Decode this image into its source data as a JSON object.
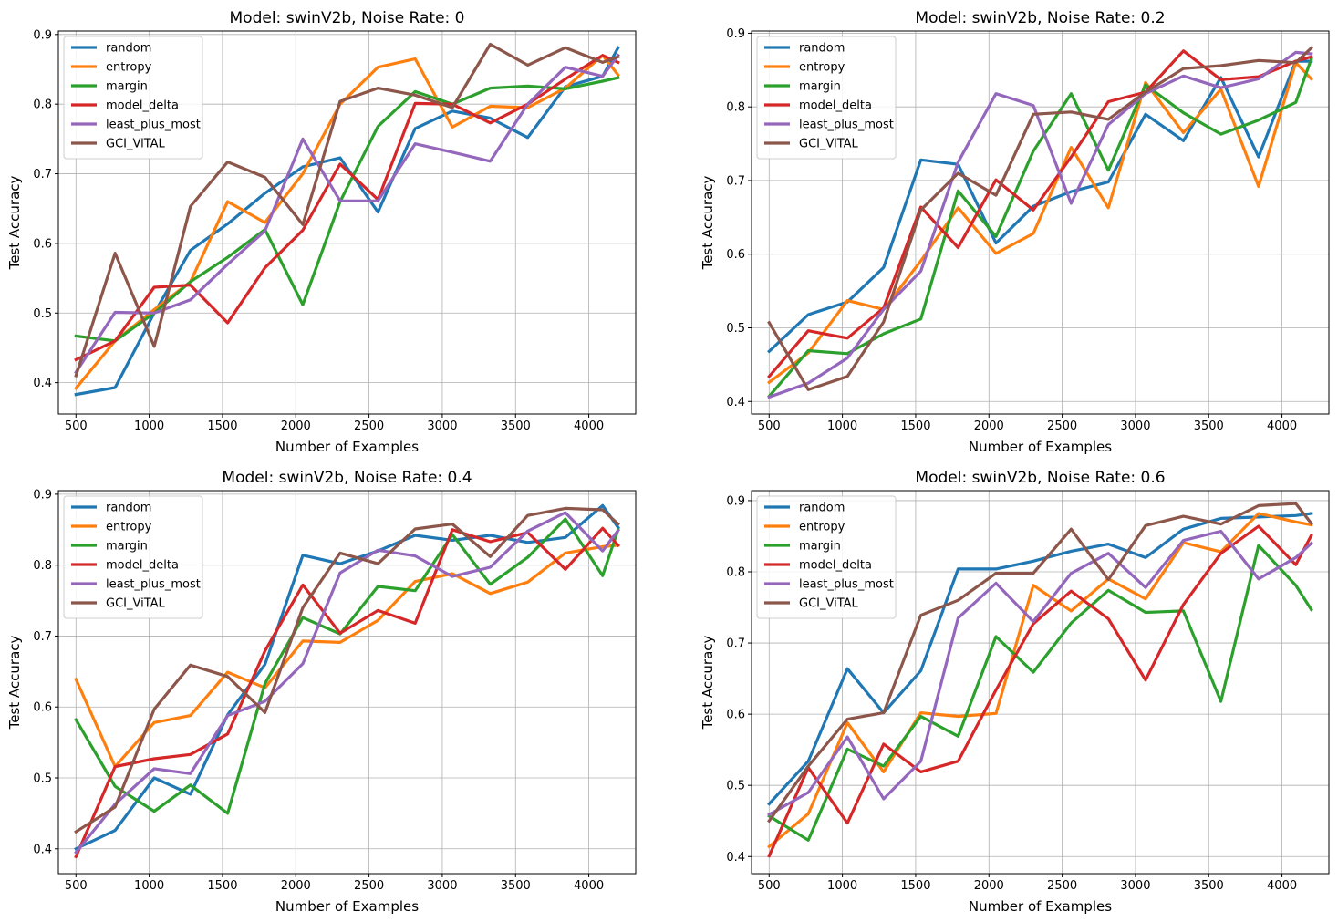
{
  "colors": {
    "random": "#1f77b4",
    "entropy": "#ff7f0e",
    "margin": "#2ca02c",
    "model_delta": "#d62728",
    "least_plus_most": "#9467bd",
    "GCI_ViTAL": "#8c564b",
    "grid": "#b0b0b0",
    "axis": "#000000"
  },
  "chart_data": [
    {
      "type": "line",
      "title": "Model: swinV2b, Noise Rate: 0",
      "xlabel": "Number of Examples",
      "ylabel": "Test Accuracy",
      "xlim": [
        380,
        4320
      ],
      "ylim": [
        0.355,
        0.905
      ],
      "xticks": [
        500,
        1000,
        1500,
        2000,
        2500,
        3000,
        3500,
        4000
      ],
      "yticks": [
        0.4,
        0.5,
        0.6,
        0.7,
        0.8,
        0.9
      ],
      "grid": true,
      "legend_position": "top-left",
      "x": [
        500,
        767,
        1034,
        1281,
        1535,
        1790,
        2048,
        2303,
        2561,
        2815,
        3069,
        3327,
        3583,
        3840,
        4094,
        4200
      ],
      "series": [
        {
          "name": "random",
          "values": [
            0.383,
            0.393,
            0.5,
            0.59,
            0.628,
            0.672,
            0.71,
            0.723,
            0.645,
            0.765,
            0.79,
            0.78,
            0.752,
            0.825,
            0.84,
            0.881
          ]
        },
        {
          "name": "entropy",
          "values": [
            0.392,
            0.46,
            0.505,
            0.545,
            0.66,
            0.63,
            0.7,
            0.8,
            0.853,
            0.865,
            0.767,
            0.797,
            0.795,
            0.823,
            0.87,
            0.842
          ]
        },
        {
          "name": "margin",
          "values": [
            0.467,
            0.46,
            0.5,
            0.545,
            0.58,
            0.62,
            0.512,
            0.66,
            0.768,
            0.818,
            0.8,
            0.823,
            0.826,
            0.822,
            0.833,
            0.838
          ]
        },
        {
          "name": "model_delta",
          "values": [
            0.433,
            0.46,
            0.537,
            0.54,
            0.486,
            0.565,
            0.619,
            0.714,
            0.663,
            0.801,
            0.8,
            0.773,
            0.8,
            0.836,
            0.87,
            0.86
          ]
        },
        {
          "name": "least_plus_most",
          "values": [
            0.415,
            0.501,
            0.5,
            0.519,
            0.57,
            0.618,
            0.75,
            0.661,
            0.661,
            0.743,
            0.731,
            0.718,
            0.8,
            0.853,
            0.84,
            0.87
          ]
        },
        {
          "name": "GCI_ViTAL",
          "values": [
            0.41,
            0.586,
            0.452,
            0.653,
            0.717,
            0.695,
            0.627,
            0.804,
            0.823,
            0.813,
            0.795,
            0.886,
            0.856,
            0.881,
            0.86,
            0.868
          ]
        }
      ]
    },
    {
      "type": "line",
      "title": "Model: swinV2b, Noise Rate: 0.2",
      "xlabel": "Number of Examples",
      "ylabel": "Test Accuracy",
      "xlim": [
        380,
        4320
      ],
      "ylim": [
        0.383,
        0.903
      ],
      "xticks": [
        500,
        1000,
        1500,
        2000,
        2500,
        3000,
        3500,
        4000
      ],
      "yticks": [
        0.4,
        0.5,
        0.6,
        0.7,
        0.8,
        0.9
      ],
      "grid": true,
      "legend_position": "top-left",
      "x": [
        500,
        767,
        1034,
        1281,
        1535,
        1790,
        2048,
        2303,
        2561,
        2815,
        3069,
        3327,
        3583,
        3840,
        4094,
        4200
      ],
      "series": [
        {
          "name": "random",
          "values": [
            0.468,
            0.518,
            0.535,
            0.582,
            0.728,
            0.722,
            0.615,
            0.665,
            0.685,
            0.698,
            0.79,
            0.754,
            0.84,
            0.732,
            0.862,
            0.862
          ]
        },
        {
          "name": "entropy",
          "values": [
            0.426,
            0.466,
            0.537,
            0.525,
            0.591,
            0.663,
            0.601,
            0.628,
            0.745,
            0.663,
            0.833,
            0.765,
            0.824,
            0.692,
            0.86,
            0.838
          ]
        },
        {
          "name": "margin",
          "values": [
            0.407,
            0.469,
            0.465,
            0.492,
            0.512,
            0.686,
            0.624,
            0.74,
            0.818,
            0.714,
            0.83,
            0.792,
            0.763,
            0.782,
            0.806,
            0.865
          ]
        },
        {
          "name": "model_delta",
          "values": [
            0.434,
            0.496,
            0.486,
            0.527,
            0.664,
            0.609,
            0.701,
            0.66,
            0.732,
            0.807,
            0.82,
            0.876,
            0.837,
            0.841,
            0.862,
            0.868
          ]
        },
        {
          "name": "least_plus_most",
          "values": [
            0.406,
            0.425,
            0.459,
            0.525,
            0.577,
            0.725,
            0.818,
            0.802,
            0.669,
            0.776,
            0.818,
            0.842,
            0.826,
            0.838,
            0.874,
            0.872
          ]
        },
        {
          "name": "GCI_ViTAL",
          "values": [
            0.507,
            0.416,
            0.434,
            0.508,
            0.66,
            0.71,
            0.68,
            0.79,
            0.793,
            0.783,
            0.82,
            0.852,
            0.856,
            0.863,
            0.86,
            0.88
          ]
        }
      ]
    },
    {
      "type": "line",
      "title": "Model: swinV2b, Noise Rate: 0.4",
      "xlabel": "Number of Examples",
      "ylabel": "Test Accuracy",
      "xlim": [
        380,
        4320
      ],
      "ylim": [
        0.365,
        0.905
      ],
      "xticks": [
        500,
        1000,
        1500,
        2000,
        2500,
        3000,
        3500,
        4000
      ],
      "yticks": [
        0.4,
        0.5,
        0.6,
        0.7,
        0.8,
        0.9
      ],
      "grid": true,
      "legend_position": "top-left",
      "x": [
        500,
        767,
        1034,
        1281,
        1535,
        1790,
        2048,
        2303,
        2561,
        2815,
        3069,
        3327,
        3583,
        3840,
        4094,
        4200
      ],
      "series": [
        {
          "name": "random",
          "values": [
            0.4,
            0.426,
            0.5,
            0.477,
            0.589,
            0.66,
            0.814,
            0.802,
            0.82,
            0.842,
            0.835,
            0.842,
            0.832,
            0.839,
            0.884,
            0.853
          ]
        },
        {
          "name": "entropy",
          "values": [
            0.639,
            0.516,
            0.578,
            0.588,
            0.649,
            0.627,
            0.693,
            0.691,
            0.722,
            0.777,
            0.788,
            0.76,
            0.776,
            0.817,
            0.826,
            0.828
          ]
        },
        {
          "name": "margin",
          "values": [
            0.582,
            0.488,
            0.453,
            0.49,
            0.45,
            0.633,
            0.726,
            0.703,
            0.77,
            0.764,
            0.843,
            0.773,
            0.811,
            0.865,
            0.785,
            0.85
          ]
        },
        {
          "name": "model_delta",
          "values": [
            0.389,
            0.516,
            0.527,
            0.533,
            0.562,
            0.679,
            0.772,
            0.704,
            0.736,
            0.718,
            0.85,
            0.833,
            0.846,
            0.794,
            0.852,
            0.828
          ]
        },
        {
          "name": "least_plus_most",
          "values": [
            0.395,
            0.463,
            0.513,
            0.506,
            0.588,
            0.608,
            0.661,
            0.789,
            0.821,
            0.813,
            0.784,
            0.797,
            0.848,
            0.874,
            0.82,
            0.849
          ]
        },
        {
          "name": "GCI_ViTAL",
          "values": [
            0.424,
            0.459,
            0.597,
            0.659,
            0.643,
            0.592,
            0.74,
            0.817,
            0.802,
            0.851,
            0.858,
            0.812,
            0.87,
            0.88,
            0.878,
            0.858
          ]
        }
      ]
    },
    {
      "type": "line",
      "title": "Model: swinV2b, Noise Rate: 0.6",
      "xlabel": "Number of Examples",
      "ylabel": "Test Accuracy",
      "xlim": [
        380,
        4320
      ],
      "ylim": [
        0.376,
        0.914
      ],
      "xticks": [
        500,
        1000,
        1500,
        2000,
        2500,
        3000,
        3500,
        4000
      ],
      "yticks": [
        0.4,
        0.5,
        0.6,
        0.7,
        0.8,
        0.9
      ],
      "grid": true,
      "legend_position": "top-left",
      "x": [
        500,
        767,
        1034,
        1281,
        1535,
        1790,
        2048,
        2303,
        2561,
        2815,
        3069,
        3327,
        3583,
        3840,
        4094,
        4200
      ],
      "series": [
        {
          "name": "random",
          "values": [
            0.474,
            0.534,
            0.664,
            0.602,
            0.661,
            0.804,
            0.804,
            0.815,
            0.829,
            0.839,
            0.82,
            0.86,
            0.875,
            0.877,
            0.879,
            0.882
          ]
        },
        {
          "name": "entropy",
          "values": [
            0.414,
            0.46,
            0.588,
            0.519,
            0.602,
            0.597,
            0.601,
            0.781,
            0.745,
            0.79,
            0.762,
            0.841,
            0.828,
            0.882,
            0.87,
            0.866
          ]
        },
        {
          "name": "margin",
          "values": [
            0.457,
            0.423,
            0.551,
            0.527,
            0.597,
            0.569,
            0.709,
            0.659,
            0.728,
            0.774,
            0.743,
            0.745,
            0.618,
            0.837,
            0.781,
            0.747
          ]
        },
        {
          "name": "model_delta",
          "values": [
            0.401,
            0.525,
            0.447,
            0.558,
            0.519,
            0.534,
            0.634,
            0.727,
            0.773,
            0.734,
            0.648,
            0.754,
            0.826,
            0.864,
            0.81,
            0.851
          ]
        },
        {
          "name": "least_plus_most",
          "values": [
            0.459,
            0.49,
            0.568,
            0.481,
            0.534,
            0.735,
            0.784,
            0.73,
            0.798,
            0.826,
            0.778,
            0.844,
            0.857,
            0.79,
            0.82,
            0.84
          ]
        },
        {
          "name": "GCI_ViTAL",
          "values": [
            0.45,
            0.527,
            0.593,
            0.602,
            0.739,
            0.76,
            0.798,
            0.798,
            0.86,
            0.789,
            0.865,
            0.878,
            0.867,
            0.893,
            0.896,
            0.868
          ]
        }
      ]
    }
  ]
}
